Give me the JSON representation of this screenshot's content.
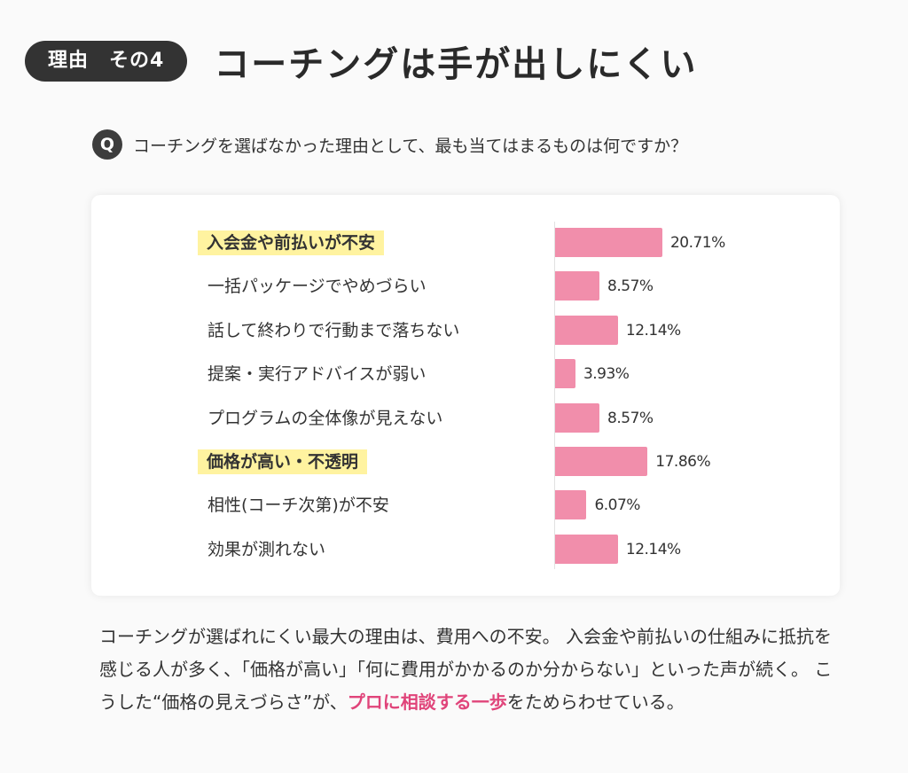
{
  "header": {
    "badge": "理由　その4",
    "title": "コーチングは手が出しにくい"
  },
  "question": {
    "icon_label": "Q",
    "text": "コーチングを選ばなかった理由として、最も当てはまるものは何ですか？"
  },
  "colors": {
    "bar": "#f18eab",
    "highlight": "#fff3a0",
    "accent": "#e0447a",
    "badge_bg": "#333333"
  },
  "chart_data": {
    "type": "bar",
    "orientation": "horizontal",
    "title": "コーチングを選ばなかった理由として、最も当てはまるものは何ですか？",
    "xlabel": "",
    "ylabel": "",
    "unit": "%",
    "grid": false,
    "legend": null,
    "categories": [
      "入会金や前払いが不安",
      "一括パッケージでやめづらい",
      "話して終わりで行動まで落ちない",
      "提案・実行アドバイスが弱い",
      "プログラムの全体像が見えない",
      "価格が高い・不透明",
      "相性(コーチ次第)が不安",
      "効果が測れない"
    ],
    "values": [
      20.71,
      8.57,
      12.14,
      3.93,
      8.57,
      17.86,
      6.07,
      12.14
    ],
    "value_labels": [
      "20.71%",
      "8.57%",
      "12.14%",
      "3.93%",
      "8.57%",
      "17.86%",
      "6.07%",
      "12.14%"
    ],
    "highlighted": [
      true,
      false,
      false,
      false,
      false,
      true,
      false,
      false
    ]
  },
  "summary": {
    "text_before": "コーチングが選ばれにくい最大の理由は、費用への不安。 入会金や前払いの仕組みに抵抗を感じる人が多く、「価格が高い」「何に費用がかかるのか分からない」といった声が続く。 こうした“価格の見えづらさ”が、",
    "accent_text": "プロに相談する一歩",
    "text_after": "をためらわせている。"
  }
}
